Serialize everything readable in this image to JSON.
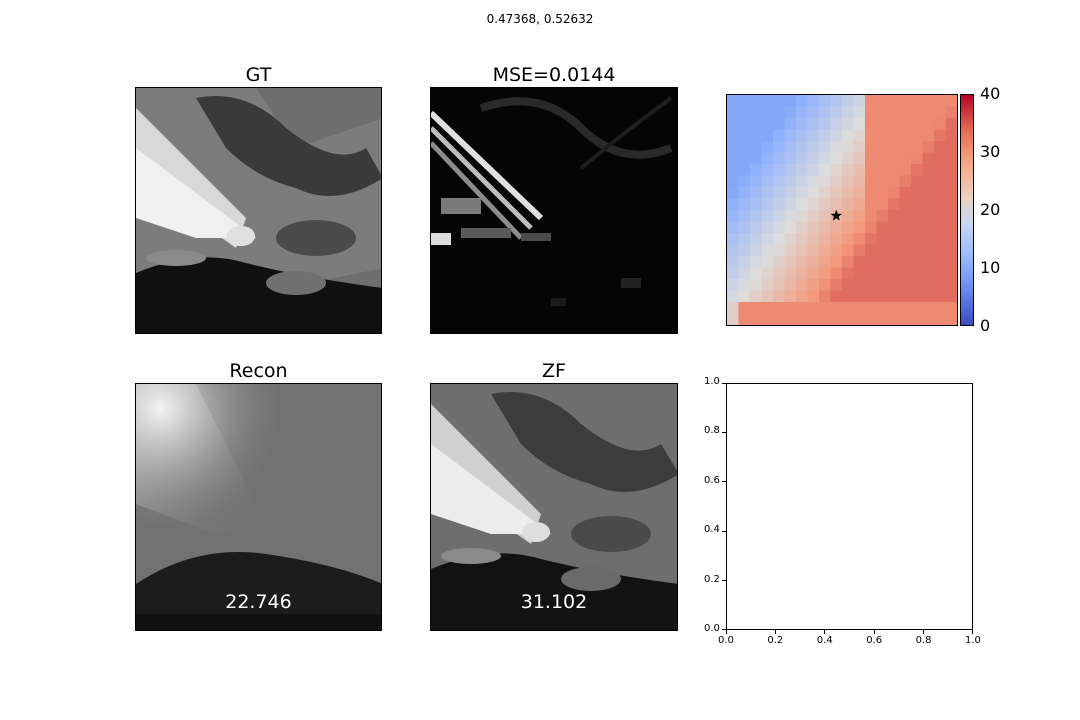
{
  "figure": {
    "suptitle": "0.47368, 0.52632"
  },
  "panels": {
    "gt": {
      "title": "GT"
    },
    "mse": {
      "title": "MSE=0.0144"
    },
    "recon": {
      "title": "Recon",
      "psnr": "22.746"
    },
    "zf": {
      "title": "ZF",
      "psnr": "31.102"
    }
  },
  "chart_data": [
    {
      "type": "heatmap",
      "name": "parameter-map",
      "cmap": "coolwarm",
      "vmin": 0,
      "vmax": 40,
      "colorbar_ticks": [
        "0",
        "10",
        "20",
        "30",
        "40"
      ],
      "grid_size": 20,
      "marker": {
        "symbol": "star",
        "row": 10,
        "col": 9
      }
    },
    {
      "type": "scatter",
      "name": "empty-axes",
      "xlim": [
        0,
        1
      ],
      "ylim": [
        0,
        1
      ],
      "xticks": [
        "0.0",
        "0.2",
        "0.4",
        "0.6",
        "0.8",
        "1.0"
      ],
      "yticks": [
        "0.0",
        "0.2",
        "0.4",
        "0.6",
        "0.8",
        "1.0"
      ],
      "series": []
    }
  ]
}
